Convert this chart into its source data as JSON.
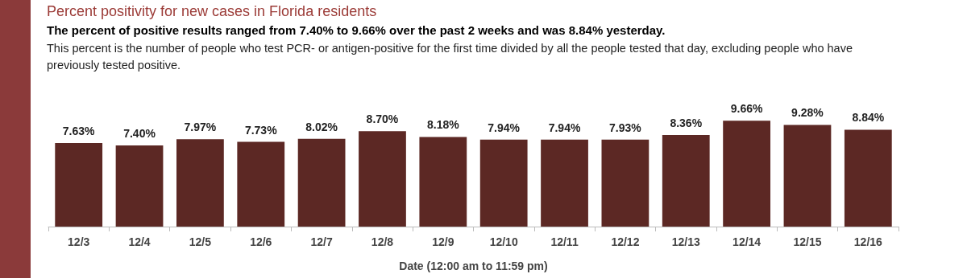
{
  "chart_data": {
    "type": "bar",
    "title": "Percent positivity for new cases in Florida residents",
    "subtitle": "The percent of positive results ranged from 7.40% to 9.66% over the past 2 weeks and was 8.84% yesterday.",
    "annotations": [
      "This percent is the number of people who test PCR- or antigen-positive for the first time divided by all the people tested that day, excluding people who have previously tested positive."
    ],
    "xlabel": "Date (12:00 am to 11:59 pm)",
    "categories": [
      "12/3",
      "12/4",
      "12/5",
      "12/6",
      "12/7",
      "12/8",
      "12/9",
      "12/10",
      "12/11",
      "12/12",
      "12/13",
      "12/14",
      "12/15",
      "12/16"
    ],
    "values": [
      7.63,
      7.4,
      7.97,
      7.73,
      8.02,
      8.7,
      8.18,
      7.94,
      7.94,
      7.93,
      8.36,
      9.66,
      9.28,
      8.84
    ],
    "value_labels": [
      "7.63%",
      "7.40%",
      "7.97%",
      "7.73%",
      "8.02%",
      "8.70%",
      "8.18%",
      "7.94%",
      "7.94%",
      "7.93%",
      "8.36%",
      "9.66%",
      "9.28%",
      "8.84%"
    ],
    "color": "#5c2824"
  }
}
